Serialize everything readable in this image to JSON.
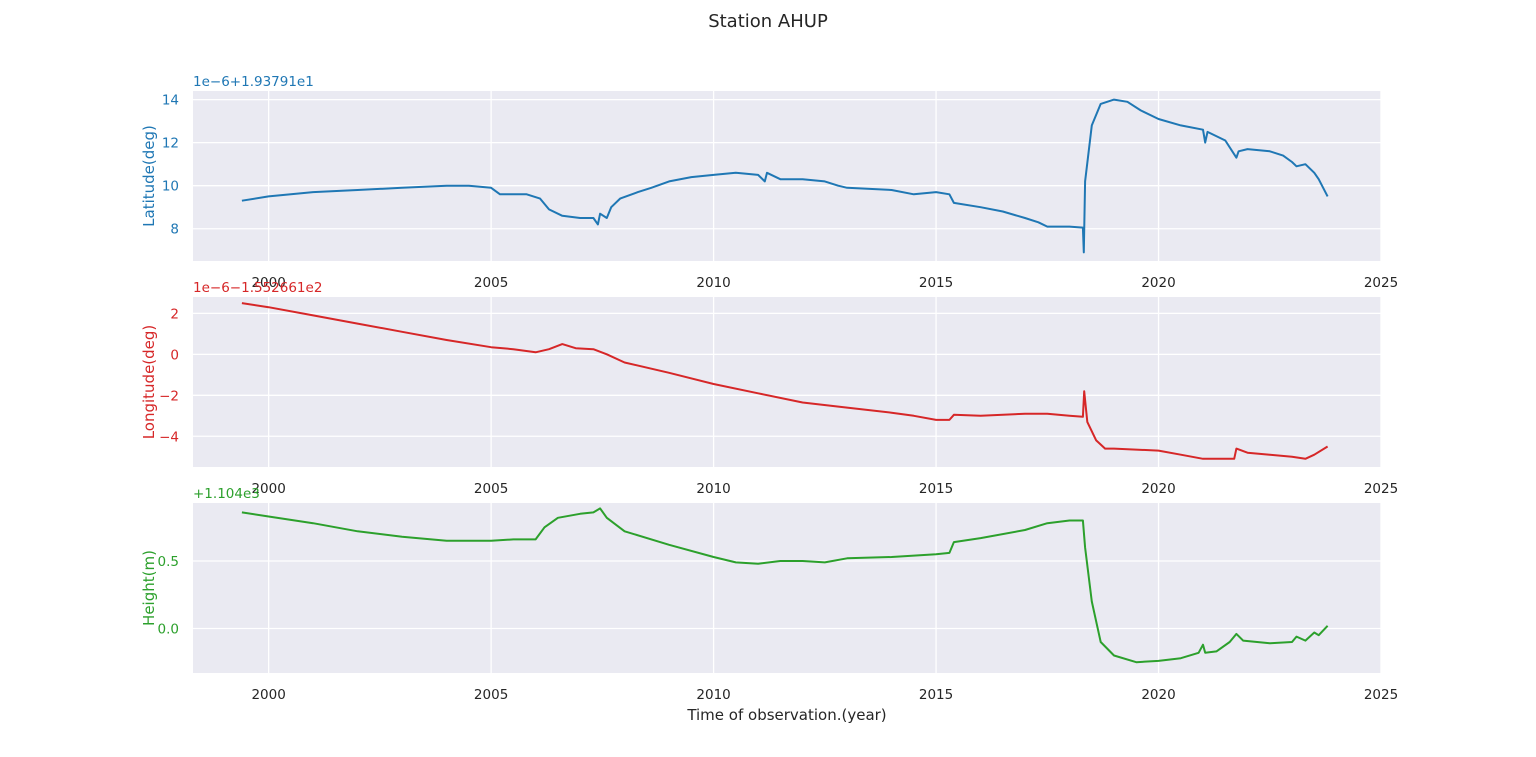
{
  "title": "Station AHUP",
  "chart_data": [
    {
      "type": "line",
      "ylabel": "Latitude(deg)",
      "offset_text": "1e−6+1.93791e1",
      "color": "#1f77b4",
      "xlim": [
        1998.3,
        2025.0
      ],
      "ylim": [
        6.5,
        14.4
      ],
      "xticks": [
        2000,
        2005,
        2010,
        2015,
        2020,
        2025
      ],
      "yticks": [
        8,
        10,
        12,
        14
      ],
      "ytick_labels": [
        "8",
        "10",
        "12",
        "14"
      ],
      "grid": true,
      "series": [
        {
          "x": [
            1999.4,
            2000.0,
            2001.0,
            2002.0,
            2003.0,
            2004.0,
            2004.5,
            2005.0,
            2005.2,
            2005.8,
            2006.1,
            2006.3,
            2006.6,
            2007.0,
            2007.3,
            2007.4,
            2007.45,
            2007.6,
            2007.7,
            2007.9,
            2008.3,
            2008.6,
            2009.0,
            2009.5,
            2010.0,
            2010.5,
            2011.0,
            2011.15,
            2011.2,
            2011.5,
            2012.0,
            2012.5,
            2012.8,
            2013.0,
            2014.0,
            2014.5,
            2015.0,
            2015.3,
            2015.4,
            2016.0,
            2016.5,
            2017.0,
            2017.3,
            2017.5,
            2018.0,
            2018.3,
            2018.32,
            2018.35,
            2018.5,
            2018.7,
            2019.0,
            2019.3,
            2019.6,
            2020.0,
            2020.5,
            2021.0,
            2021.05,
            2021.1,
            2021.2,
            2021.5,
            2021.75,
            2021.8,
            2022.0,
            2022.5,
            2022.8,
            2023.0,
            2023.1,
            2023.3,
            2023.5,
            2023.6,
            2023.8
          ],
          "y": [
            9.3,
            9.5,
            9.7,
            9.8,
            9.9,
            10.0,
            10.0,
            9.9,
            9.6,
            9.6,
            9.4,
            8.9,
            8.6,
            8.5,
            8.5,
            8.2,
            8.7,
            8.5,
            9.0,
            9.4,
            9.7,
            9.9,
            10.2,
            10.4,
            10.5,
            10.6,
            10.5,
            10.2,
            10.6,
            10.3,
            10.3,
            10.2,
            10.0,
            9.9,
            9.8,
            9.6,
            9.7,
            9.6,
            9.2,
            9.0,
            8.8,
            8.5,
            8.3,
            8.1,
            8.1,
            8.05,
            6.9,
            10.2,
            12.8,
            13.8,
            14.0,
            13.9,
            13.5,
            13.1,
            12.8,
            12.6,
            12.0,
            12.5,
            12.4,
            12.1,
            11.3,
            11.6,
            11.7,
            11.6,
            11.4,
            11.1,
            10.9,
            11.0,
            10.6,
            10.3,
            9.5
          ]
        }
      ]
    },
    {
      "type": "line",
      "ylabel": "Longitude(deg)",
      "offset_text": "1e−6−1.552661e2",
      "color": "#d62728",
      "xlim": [
        1998.3,
        2025.0
      ],
      "ylim": [
        -5.5,
        2.8
      ],
      "xticks": [
        2000,
        2005,
        2010,
        2015,
        2020,
        2025
      ],
      "yticks": [
        -4,
        -2,
        0,
        2
      ],
      "ytick_labels": [
        "−4",
        "−2",
        "0",
        "2"
      ],
      "grid": true,
      "series": [
        {
          "x": [
            1999.4,
            2000.0,
            2001.0,
            2002.0,
            2003.0,
            2004.0,
            2005.0,
            2005.5,
            2006.0,
            2006.3,
            2006.6,
            2006.9,
            2007.3,
            2007.6,
            2008.0,
            2009.0,
            2010.0,
            2011.0,
            2012.0,
            2013.0,
            2014.0,
            2014.5,
            2015.0,
            2015.3,
            2015.4,
            2016.0,
            2017.0,
            2017.5,
            2018.0,
            2018.3,
            2018.33,
            2018.4,
            2018.6,
            2018.8,
            2019.0,
            2020.0,
            2020.5,
            2021.0,
            2021.7,
            2021.75,
            2022.0,
            2022.5,
            2023.0,
            2023.3,
            2023.5,
            2023.8
          ],
          "y": [
            2.5,
            2.3,
            1.9,
            1.5,
            1.1,
            0.7,
            0.35,
            0.25,
            0.1,
            0.25,
            0.5,
            0.3,
            0.25,
            0.0,
            -0.4,
            -0.9,
            -1.45,
            -1.9,
            -2.35,
            -2.6,
            -2.85,
            -3.0,
            -3.2,
            -3.2,
            -2.95,
            -3.0,
            -2.9,
            -2.9,
            -3.0,
            -3.05,
            -1.8,
            -3.3,
            -4.2,
            -4.6,
            -4.6,
            -4.7,
            -4.9,
            -5.1,
            -5.1,
            -4.6,
            -4.8,
            -4.9,
            -5.0,
            -5.1,
            -4.9,
            -4.5
          ]
        }
      ]
    },
    {
      "type": "line",
      "ylabel": "Height(m)",
      "offset_text": "+1.104e3",
      "color": "#2ca02c",
      "xlim": [
        1998.3,
        2025.0
      ],
      "ylim": [
        -0.33,
        0.93
      ],
      "xticks": [
        2000,
        2005,
        2010,
        2015,
        2020,
        2025
      ],
      "yticks": [
        0.0,
        0.5
      ],
      "ytick_labels": [
        "0.0",
        "0.5"
      ],
      "xlabel": "Time of observation.(year)",
      "grid": true,
      "series": [
        {
          "x": [
            1999.4,
            2000.0,
            2001.0,
            2002.0,
            2003.0,
            2004.0,
            2005.0,
            2005.5,
            2006.0,
            2006.2,
            2006.5,
            2007.0,
            2007.3,
            2007.45,
            2007.6,
            2008.0,
            2009.0,
            2010.0,
            2010.5,
            2011.0,
            2011.5,
            2012.0,
            2012.5,
            2013.0,
            2014.0,
            2015.0,
            2015.3,
            2015.4,
            2016.0,
            2017.0,
            2017.5,
            2018.0,
            2018.3,
            2018.35,
            2018.5,
            2018.7,
            2019.0,
            2019.5,
            2020.0,
            2020.5,
            2020.9,
            2021.0,
            2021.05,
            2021.3,
            2021.6,
            2021.75,
            2021.9,
            2022.5,
            2023.0,
            2023.1,
            2023.3,
            2023.5,
            2023.6,
            2023.8
          ],
          "y": [
            0.86,
            0.83,
            0.78,
            0.72,
            0.68,
            0.65,
            0.65,
            0.66,
            0.66,
            0.75,
            0.82,
            0.85,
            0.86,
            0.89,
            0.82,
            0.72,
            0.62,
            0.53,
            0.49,
            0.48,
            0.5,
            0.5,
            0.49,
            0.52,
            0.53,
            0.55,
            0.56,
            0.64,
            0.67,
            0.73,
            0.78,
            0.8,
            0.8,
            0.6,
            0.2,
            -0.1,
            -0.2,
            -0.25,
            -0.24,
            -0.22,
            -0.18,
            -0.12,
            -0.18,
            -0.17,
            -0.1,
            -0.04,
            -0.09,
            -0.11,
            -0.1,
            -0.06,
            -0.09,
            -0.03,
            -0.05,
            0.02
          ]
        }
      ]
    }
  ]
}
